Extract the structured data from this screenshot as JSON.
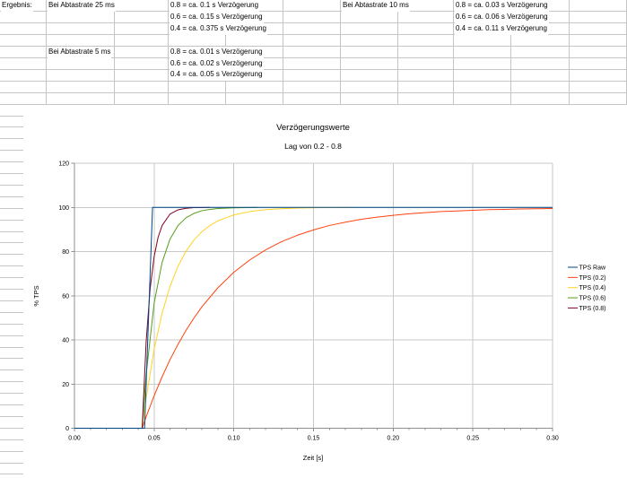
{
  "spreadsheet": {
    "cells": [
      {
        "r": 0,
        "c": 0,
        "text": "Ergebnis:"
      },
      {
        "r": 0,
        "c": 1,
        "text": "Bei Abtastrate 25 ms"
      },
      {
        "r": 0,
        "c": 3,
        "text": "0.8 = ca. 0.1 s Verzögerung"
      },
      {
        "r": 0,
        "c": 6,
        "text": "Bei Abtastrate 10 ms"
      },
      {
        "r": 0,
        "c": 8,
        "text": "0.8 = ca. 0.03 s Verzögerung"
      },
      {
        "r": 1,
        "c": 3,
        "text": "0.6 = ca. 0.15 s Verzögerung"
      },
      {
        "r": 1,
        "c": 8,
        "text": "0.6 = ca. 0.06 s Verzögerung"
      },
      {
        "r": 2,
        "c": 3,
        "text": "0.4 = ca. 0.375 s Verzögerung"
      },
      {
        "r": 2,
        "c": 8,
        "text": "0.4 = ca. 0.11 s Verzögerung"
      },
      {
        "r": 4,
        "c": 1,
        "text": "Bei Abtastrate 5 ms"
      },
      {
        "r": 4,
        "c": 3,
        "text": "0.8 = ca. 0.01 s Verzögerung"
      },
      {
        "r": 5,
        "c": 3,
        "text": "0.6 = ca. 0.02 s Verzögerung"
      },
      {
        "r": 6,
        "c": 3,
        "text": "0.4 = ca. 0.05 s Verzögerung"
      }
    ]
  },
  "chart_data": {
    "type": "line",
    "title": "Verzögerungswerte",
    "subtitle": "Lag von 0.2 - 0.8",
    "xlabel": "Zeit [s]",
    "ylabel": "% TPS",
    "xlim": [
      0,
      0.3
    ],
    "ylim": [
      0,
      120
    ],
    "grid": true,
    "legend_position": "right",
    "x_minor_step": 0.01,
    "x_ticks": [
      {
        "v": 0.0,
        "label": "0.00"
      },
      {
        "v": 0.05,
        "label": "0.05"
      },
      {
        "v": 0.1,
        "label": "0.10"
      },
      {
        "v": 0.15,
        "label": "0.15"
      },
      {
        "v": 0.2,
        "label": "0.20"
      },
      {
        "v": 0.25,
        "label": "0.25"
      },
      {
        "v": 0.3,
        "label": "0.30"
      }
    ],
    "y_ticks": [
      {
        "v": 0,
        "label": "0"
      },
      {
        "v": 20,
        "label": "20"
      },
      {
        "v": 40,
        "label": "40"
      },
      {
        "v": 60,
        "label": "60"
      },
      {
        "v": 80,
        "label": "80"
      },
      {
        "v": 100,
        "label": "100"
      },
      {
        "v": 120,
        "label": "120"
      }
    ],
    "colors": {
      "gridline": "#c9c9c9",
      "axis": "#8f8f8f",
      "sheet_grid": "#c5c5c5"
    },
    "series": [
      {
        "name": "TPS Raw",
        "color": "#004586",
        "points": [
          [
            0,
            0
          ],
          [
            0.044,
            0
          ],
          [
            0.049,
            100
          ],
          [
            0.3,
            100
          ]
        ]
      },
      {
        "name": "TPS (0.2)",
        "color": "#FF420E",
        "points": [
          [
            0,
            0
          ],
          [
            0.0425,
            0
          ],
          [
            0.045,
            5.2
          ],
          [
            0.05,
            14.7
          ],
          [
            0.055,
            23.3
          ],
          [
            0.06,
            31.1
          ],
          [
            0.065,
            38
          ],
          [
            0.07,
            44.3
          ],
          [
            0.075,
            49.9
          ],
          [
            0.08,
            55
          ],
          [
            0.09,
            63.6
          ],
          [
            0.1,
            70.6
          ],
          [
            0.11,
            76.2
          ],
          [
            0.12,
            80.8
          ],
          [
            0.13,
            84.5
          ],
          [
            0.14,
            87.4
          ],
          [
            0.15,
            89.8
          ],
          [
            0.16,
            91.8
          ],
          [
            0.17,
            93.3
          ],
          [
            0.18,
            94.6
          ],
          [
            0.19,
            95.6
          ],
          [
            0.2,
            96.4
          ],
          [
            0.21,
            97.1
          ],
          [
            0.22,
            97.6
          ],
          [
            0.23,
            98.1
          ],
          [
            0.24,
            98.4
          ],
          [
            0.25,
            98.7
          ],
          [
            0.26,
            99
          ],
          [
            0.27,
            99.1
          ],
          [
            0.28,
            99.3
          ],
          [
            0.29,
            99.4
          ],
          [
            0.3,
            99.5
          ]
        ]
      },
      {
        "name": "TPS (0.4)",
        "color": "#FFD320",
        "points": [
          [
            0,
            0
          ],
          [
            0.0425,
            0
          ],
          [
            0.045,
            13.7
          ],
          [
            0.05,
            35.7
          ],
          [
            0.055,
            52.1
          ],
          [
            0.06,
            64.3
          ],
          [
            0.065,
            73.4
          ],
          [
            0.07,
            80.2
          ],
          [
            0.075,
            85.2
          ],
          [
            0.08,
            89
          ],
          [
            0.085,
            91.8
          ],
          [
            0.09,
            93.9
          ],
          [
            0.1,
            96.6
          ],
          [
            0.11,
            98.1
          ],
          [
            0.12,
            99
          ],
          [
            0.13,
            99.4
          ],
          [
            0.14,
            99.7
          ],
          [
            0.155,
            99.9
          ],
          [
            0.175,
            100
          ]
        ]
      },
      {
        "name": "TPS (0.6)",
        "color": "#579D1C",
        "points": [
          [
            0,
            0
          ],
          [
            0.0425,
            0
          ],
          [
            0.045,
            24.3
          ],
          [
            0.05,
            56.6
          ],
          [
            0.055,
            75.1
          ],
          [
            0.06,
            85.7
          ],
          [
            0.065,
            91.8
          ],
          [
            0.07,
            95.3
          ],
          [
            0.075,
            97.3
          ],
          [
            0.08,
            98.5
          ],
          [
            0.085,
            99.1
          ],
          [
            0.09,
            99.5
          ],
          [
            0.1,
            99.8
          ],
          [
            0.115,
            100
          ]
        ]
      },
      {
        "name": "TPS (0.8)",
        "color": "#7E0021",
        "points": [
          [
            0,
            0
          ],
          [
            0.0425,
            0
          ],
          [
            0.045,
            39.3
          ],
          [
            0.0475,
            63.2
          ],
          [
            0.05,
            77.7
          ],
          [
            0.0525,
            86.5
          ],
          [
            0.055,
            91.8
          ],
          [
            0.06,
            97
          ],
          [
            0.065,
            98.9
          ],
          [
            0.07,
            99.6
          ],
          [
            0.075,
            99.9
          ],
          [
            0.08,
            99.9
          ],
          [
            0.085,
            100
          ]
        ]
      }
    ]
  }
}
